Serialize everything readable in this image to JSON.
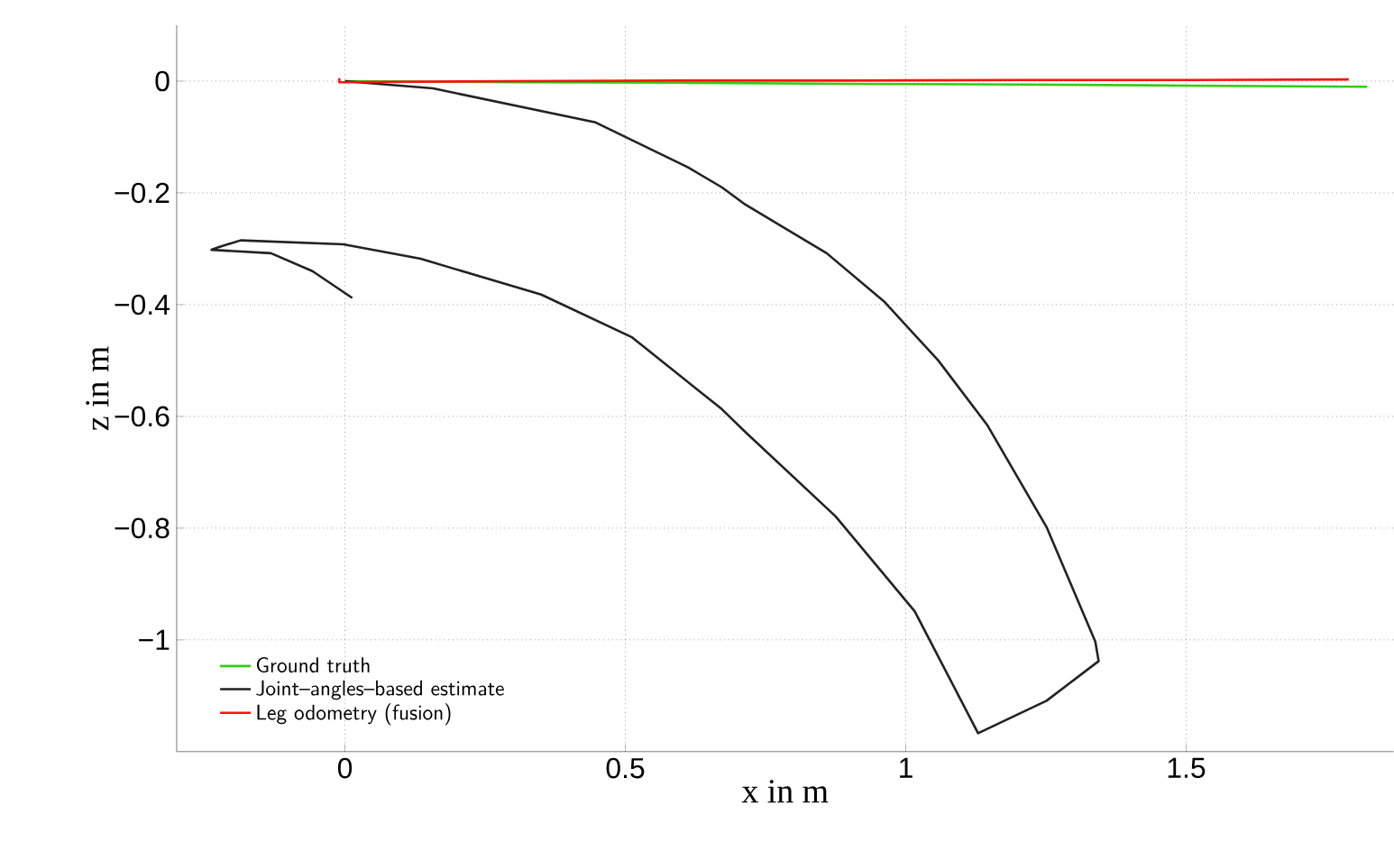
{
  "chart_data": {
    "type": "line",
    "xlabel": "x in m",
    "ylabel": "z in m",
    "xlim": [
      -0.3,
      1.87
    ],
    "ylim": [
      -1.2,
      0.1
    ],
    "xticks": [
      0,
      0.5,
      1,
      1.5
    ],
    "yticks": [
      {
        "value": -1,
        "label": "−1"
      },
      {
        "value": -0.8,
        "label": "−0.8"
      },
      {
        "value": -0.6,
        "label": "−0.6"
      },
      {
        "value": -0.4,
        "label": "−0.4"
      },
      {
        "value": -0.2,
        "label": "−0.2"
      },
      0
    ],
    "grid": true,
    "legend": "bottom left",
    "line_style": "solid",
    "marker": "none",
    "series": [
      {
        "name": "Ground truth",
        "color": "#33cc11",
        "x": [
          0,
          0.3,
          0.6,
          0.9,
          1.2,
          1.5,
          1.823
        ],
        "values": [
          0,
          -0.002,
          -0.003,
          -0.005,
          -0.006,
          -0.008,
          -0.01
        ]
      },
      {
        "name": "Joint–angles–based estimate",
        "color": "#222222",
        "x": [
          0,
          0.157,
          0.447,
          0.611,
          0.672,
          0.714,
          0.859,
          0.961,
          1.058,
          1.145,
          1.251,
          1.338,
          1.344,
          1.251,
          1.129,
          1.016,
          0.875,
          0.714,
          0.672,
          0.511,
          0.35,
          0.135,
          -0.003,
          -0.186,
          -0.228,
          -0.238,
          -0.132,
          -0.058,
          0.013
        ],
        "values": [
          0,
          -0.013,
          -0.074,
          -0.154,
          -0.19,
          -0.221,
          -0.308,
          -0.394,
          -0.5,
          -0.615,
          -0.798,
          -1.003,
          -1.038,
          -1.109,
          -1.167,
          -0.949,
          -0.779,
          -0.628,
          -0.587,
          -0.458,
          -0.382,
          -0.318,
          -0.292,
          -0.285,
          -0.298,
          -0.302,
          -0.308,
          -0.34,
          -0.388
        ]
      },
      {
        "name": "Leg odometry (fusion)",
        "color": "#ff1111",
        "x": [
          -0.01,
          -0.01,
          0.3,
          0.6,
          0.9,
          1.2,
          1.5,
          1.79
        ],
        "values": [
          0.005,
          -0.002,
          0,
          0.001,
          0.001,
          0.002,
          0.002,
          0.003
        ]
      }
    ]
  }
}
